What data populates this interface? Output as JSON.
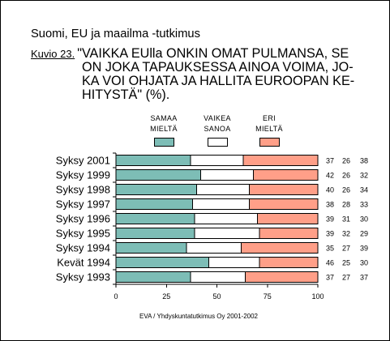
{
  "header": {
    "title": "Suomi, EU ja maailma -tutkimus",
    "figure_label": "Kuvio 23."
  },
  "source": "EVA / Yhdyskuntatutkimus Oy 2001-2002",
  "chart_data": {
    "type": "bar",
    "orientation": "horizontal",
    "stacked": true,
    "title_lines": [
      "\"VAIKKA EUlla ONKIN OMAT PULMANSA, SE",
      "ON JOKA TAPAUKSESSA AINOA VOIMA, JO-",
      "KA VOI OHJATA JA HALLITA EUROOPAN KE-",
      "HITYSTÄ\" (%)."
    ],
    "categories": [
      "Syksy 2001",
      "Syksy 1999",
      "Syksy 1998",
      "Syksy 1997",
      "Syksy 1996",
      "Syksy 1995",
      "Syksy 1994",
      "Kevät 1994",
      "Syksy 1993"
    ],
    "series": [
      {
        "name": "SAMAA MIELTÄ",
        "color": "#7dbdb6",
        "values": [
          37,
          42,
          40,
          38,
          39,
          39,
          35,
          46,
          37
        ]
      },
      {
        "name": "VAIKEA SANOA",
        "color": "#ffffff",
        "values": [
          26,
          26,
          26,
          28,
          31,
          32,
          27,
          25,
          27
        ]
      },
      {
        "name": "ERI MIELTÄ",
        "color": "#ff9f88",
        "values": [
          38,
          32,
          34,
          33,
          30,
          29,
          39,
          30,
          37
        ]
      }
    ],
    "xlim": [
      0,
      100
    ],
    "xticks": [
      0,
      25,
      50,
      75,
      100
    ],
    "grid": false,
    "legend": "top"
  }
}
